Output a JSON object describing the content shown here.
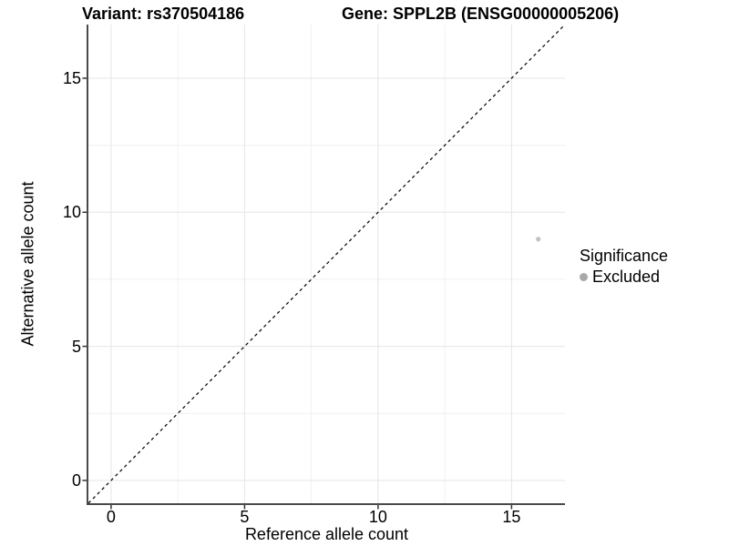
{
  "figure": {
    "title_left": "Variant: rs370504186",
    "title_right": "Gene: SPPL2B (ENSG00000005206)"
  },
  "chart_data": {
    "type": "scatter",
    "title": "Variant: rs370504186    Gene: SPPL2B (ENSG00000005206)",
    "xlabel": "Reference allele count",
    "ylabel": "Alternative allele count",
    "xlim": [
      -0.85,
      17
    ],
    "ylim": [
      -0.85,
      17
    ],
    "xticks": [
      0,
      5,
      10,
      15
    ],
    "yticks": [
      0,
      5,
      10,
      15
    ],
    "minor_xticks": [
      2.5,
      7.5,
      12.5
    ],
    "minor_yticks": [
      2.5,
      7.5,
      12.5
    ],
    "grid": "major+minor",
    "legend_position": "right",
    "identity_line": {
      "slope": 1,
      "intercept": 0,
      "style": "dashed",
      "color": "#111111"
    },
    "series": [
      {
        "name": "Excluded",
        "point_color": "#c2c2c2",
        "points": [
          {
            "x": 16,
            "y": 9
          }
        ]
      }
    ],
    "legend": {
      "title": "Significance",
      "items": [
        {
          "label": "Excluded",
          "color": "#a8a8a8"
        }
      ]
    },
    "colors": {
      "axis_line": "#4a4a4a",
      "tick_mark": "#333333",
      "grid_major": "#e5e5e5",
      "grid_minor": "#f0f0f0",
      "background": "#ffffff",
      "text": "#000000"
    }
  }
}
